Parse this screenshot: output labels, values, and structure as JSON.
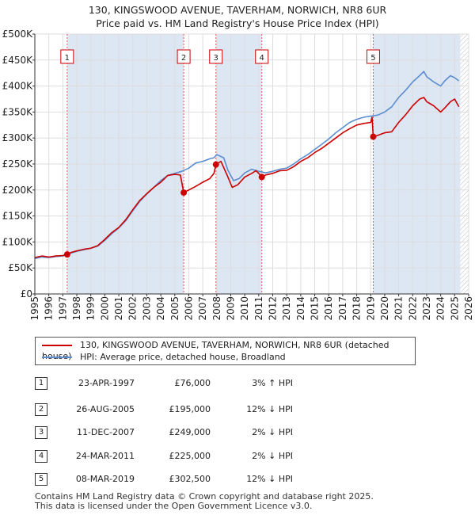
{
  "title_line1": "130, KINGSWOOD AVENUE, TAVERHAM, NORWICH, NR8 6UR",
  "title_line2": "Price paid vs. HM Land Registry's House Price Index (HPI)",
  "colors": {
    "price_line": "#cc0000",
    "hpi_line": "#5b8ed1",
    "shade": "#dde6f3",
    "marker_line": "#e06060",
    "grid": "#dddddd",
    "hatch": "#bbbbbb"
  },
  "chart_data": {
    "type": "line",
    "title": "Price paid vs. HM Land Registry's House Price Index (HPI)",
    "xlabel": "",
    "ylabel": "",
    "xlim": [
      1995.0,
      2026.0
    ],
    "ylim": [
      0,
      500000
    ],
    "y_ticks": [
      0,
      50000,
      100000,
      150000,
      200000,
      250000,
      300000,
      350000,
      400000,
      450000,
      500000
    ],
    "y_tick_labels": [
      "£0",
      "£50K",
      "£100K",
      "£150K",
      "£200K",
      "£250K",
      "£300K",
      "£350K",
      "£400K",
      "£450K",
      "£500K"
    ],
    "x_ticks": [
      1995,
      1996,
      1997,
      1998,
      1999,
      2000,
      2001,
      2002,
      2003,
      2004,
      2005,
      2006,
      2007,
      2008,
      2009,
      2010,
      2011,
      2012,
      2013,
      2014,
      2015,
      2016,
      2017,
      2018,
      2019,
      2020,
      2021,
      2022,
      2023,
      2024,
      2025,
      2026
    ],
    "x_tick_labels": [
      "1995",
      "1996",
      "1997",
      "1998",
      "1999",
      "2000",
      "2001",
      "2002",
      "2003",
      "2004",
      "2005",
      "2006",
      "2007",
      "2008",
      "2009",
      "2010",
      "2011",
      "2012",
      "2013",
      "2014",
      "2015",
      "2016",
      "2017",
      "2018",
      "2019",
      "2020",
      "2021",
      "2022",
      "2023",
      "2024",
      "2025",
      "2026"
    ],
    "data_end_year": 2025.4,
    "series": [
      {
        "name": "130, KINGSWOOD AVENUE, TAVERHAM, NORWICH, NR8 6UR (detached house)",
        "color": "#cc0000",
        "x": [
          1995.0,
          1995.5,
          1996.0,
          1996.5,
          1997.0,
          1997.31,
          1997.6,
          1998.0,
          1998.5,
          1999.0,
          1999.5,
          2000.0,
          2000.5,
          2001.0,
          2001.5,
          2002.0,
          2002.5,
          2003.0,
          2003.5,
          2004.0,
          2004.5,
          2005.0,
          2005.4,
          2005.64,
          2006.0,
          2006.5,
          2007.0,
          2007.5,
          2007.8,
          2007.94,
          2008.3,
          2008.8,
          2009.1,
          2009.5,
          2010.0,
          2010.5,
          2010.8,
          2011.0,
          2011.22,
          2011.5,
          2012.0,
          2012.5,
          2013.0,
          2013.5,
          2014.0,
          2014.5,
          2015.0,
          2015.5,
          2016.0,
          2016.5,
          2017.0,
          2017.5,
          2018.0,
          2018.5,
          2019.0,
          2019.1,
          2019.18,
          2019.5,
          2020.0,
          2020.5,
          2021.0,
          2021.5,
          2022.0,
          2022.5,
          2022.8,
          2023.0,
          2023.5,
          2024.0,
          2024.3,
          2024.7,
          2025.0,
          2025.3
        ],
        "y": [
          70000,
          73000,
          71000,
          73000,
          74000,
          76000,
          80000,
          83000,
          86000,
          88000,
          93000,
          105000,
          118000,
          128000,
          143000,
          162000,
          180000,
          193000,
          205000,
          215000,
          228000,
          230000,
          229000,
          195000,
          200000,
          207000,
          215000,
          222000,
          232000,
          249000,
          255000,
          225000,
          205000,
          210000,
          225000,
          232000,
          237000,
          232000,
          225000,
          229000,
          232000,
          237000,
          238000,
          245000,
          255000,
          262000,
          272000,
          280000,
          290000,
          300000,
          310000,
          318000,
          325000,
          328000,
          330000,
          340000,
          302500,
          305000,
          310000,
          312000,
          330000,
          345000,
          362000,
          375000,
          378000,
          370000,
          362000,
          350000,
          358000,
          370000,
          375000,
          360000
        ]
      },
      {
        "name": "HPI: Average price, detached house, Broadland",
        "color": "#5b8ed1",
        "x": [
          1995.0,
          1995.5,
          1996.0,
          1996.5,
          1997.0,
          1997.5,
          1998.0,
          1998.5,
          1999.0,
          1999.5,
          2000.0,
          2000.5,
          2001.0,
          2001.5,
          2002.0,
          2002.5,
          2003.0,
          2003.5,
          2004.0,
          2004.5,
          2005.0,
          2005.5,
          2006.0,
          2006.5,
          2007.0,
          2007.5,
          2007.8,
          2008.0,
          2008.5,
          2008.8,
          2009.2,
          2009.6,
          2010.0,
          2010.5,
          2011.0,
          2011.5,
          2012.0,
          2012.5,
          2013.0,
          2013.5,
          2014.0,
          2014.5,
          2015.0,
          2015.5,
          2016.0,
          2016.5,
          2017.0,
          2017.5,
          2018.0,
          2018.5,
          2019.0,
          2019.5,
          2020.0,
          2020.5,
          2021.0,
          2021.5,
          2022.0,
          2022.5,
          2022.8,
          2023.0,
          2023.5,
          2024.0,
          2024.3,
          2024.7,
          2025.0,
          2025.3
        ],
        "y": [
          68000,
          71000,
          70000,
          72000,
          73000,
          78000,
          82000,
          85000,
          88000,
          92000,
          103000,
          116000,
          127000,
          141000,
          160000,
          178000,
          192000,
          205000,
          218000,
          228000,
          232000,
          236000,
          242000,
          252000,
          255000,
          260000,
          262000,
          268000,
          262000,
          238000,
          218000,
          222000,
          233000,
          240000,
          236000,
          233000,
          236000,
          240000,
          242000,
          250000,
          260000,
          268000,
          278000,
          288000,
          298000,
          310000,
          320000,
          330000,
          336000,
          340000,
          342000,
          344000,
          350000,
          360000,
          378000,
          392000,
          408000,
          420000,
          428000,
          418000,
          408000,
          400000,
          410000,
          420000,
          416000,
          410000
        ]
      }
    ],
    "shaded_periods": [
      [
        1997.31,
        2005.64
      ],
      [
        2007.94,
        2011.22
      ],
      [
        2019.18,
        2025.4
      ]
    ],
    "transactions": [
      {
        "num": "1",
        "x": 1997.31,
        "price": 76000,
        "date": "23-APR-1997",
        "price_label": "£76,000",
        "hpi_label": "3% ↑ HPI"
      },
      {
        "num": "2",
        "x": 2005.64,
        "price": 195000,
        "date": "26-AUG-2005",
        "price_label": "£195,000",
        "hpi_label": "12% ↓ HPI"
      },
      {
        "num": "3",
        "x": 2007.94,
        "price": 249000,
        "date": "11-DEC-2007",
        "price_label": "£249,000",
        "hpi_label": "2% ↓ HPI"
      },
      {
        "num": "4",
        "x": 2011.22,
        "price": 225000,
        "date": "24-MAR-2011",
        "price_label": "£225,000",
        "hpi_label": "2% ↓ HPI"
      },
      {
        "num": "5",
        "x": 2019.18,
        "price": 302500,
        "date": "08-MAR-2019",
        "price_label": "£302,500",
        "hpi_label": "12% ↓ HPI"
      }
    ]
  },
  "legend": {
    "price_label": "130, KINGSWOOD AVENUE, TAVERHAM, NORWICH, NR8 6UR (detached house)",
    "hpi_label": "HPI: Average price, detached house, Broadland"
  },
  "footer": {
    "line1": "Contains HM Land Registry data © Crown copyright and database right 2025.",
    "line2": "This data is licensed under the Open Government Licence v3.0."
  }
}
